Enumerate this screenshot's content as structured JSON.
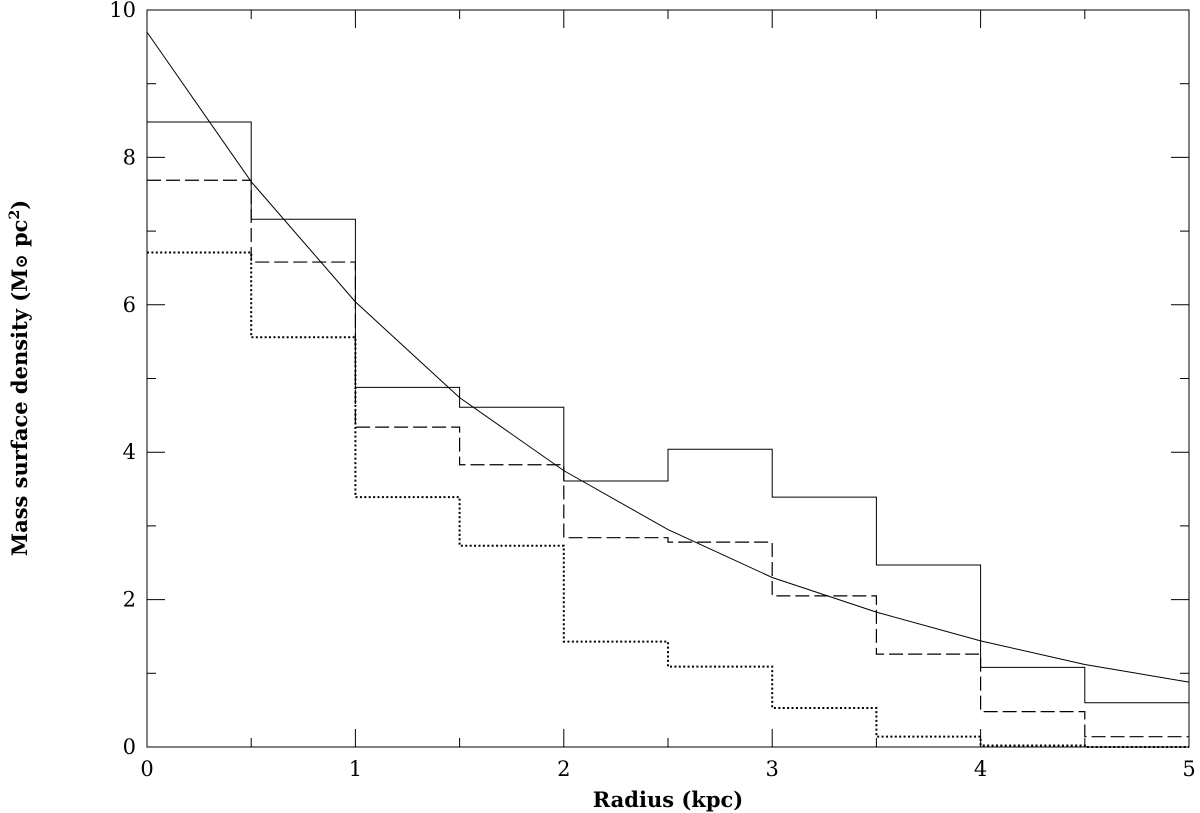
{
  "chart_data": {
    "type": "line",
    "xlabel": "Radius (kpc)",
    "ylabel_main": "Mass surface density (M",
    "ylabel_sun": "⊙",
    "ylabel_unit": " pc",
    "ylabel_exp": "2",
    "ylabel_close": ")",
    "xlim": [
      0,
      5
    ],
    "ylim": [
      0,
      10
    ],
    "xticks_major": [
      0,
      1,
      2,
      3,
      4,
      5
    ],
    "xtick_labels": [
      "0",
      "1",
      "2",
      "3",
      "4",
      "5"
    ],
    "yticks_major": [
      0,
      2,
      4,
      6,
      8,
      10
    ],
    "ytick_labels": [
      "0",
      "2",
      "4",
      "6",
      "8",
      "10"
    ],
    "x_minor_step": 0.5,
    "y_minor_step": 1,
    "bin_edges": [
      0,
      0.5,
      1,
      1.5,
      2,
      2.5,
      3,
      3.5,
      4,
      4.5,
      5
    ],
    "series": [
      {
        "style": "solid",
        "kind": "step",
        "values": [
          8.48,
          7.16,
          4.88,
          4.61,
          3.61,
          4.04,
          3.39,
          2.47,
          1.08,
          0.6
        ]
      },
      {
        "style": "dashed",
        "kind": "step",
        "values": [
          7.69,
          6.58,
          4.34,
          3.83,
          2.84,
          2.78,
          2.05,
          1.26,
          0.48,
          0.14
        ]
      },
      {
        "style": "dotted",
        "kind": "step",
        "values": [
          6.71,
          5.56,
          3.39,
          2.73,
          1.43,
          1.09,
          0.53,
          0.14,
          0.02,
          0.0
        ]
      },
      {
        "style": "solid",
        "kind": "curve",
        "x": [
          0,
          0.5,
          1,
          1.5,
          2,
          2.5,
          3,
          3.5,
          4,
          4.5,
          5
        ],
        "y": [
          9.7,
          7.67,
          6.04,
          4.74,
          3.75,
          2.95,
          2.3,
          1.83,
          1.44,
          1.12,
          0.88
        ]
      }
    ]
  }
}
